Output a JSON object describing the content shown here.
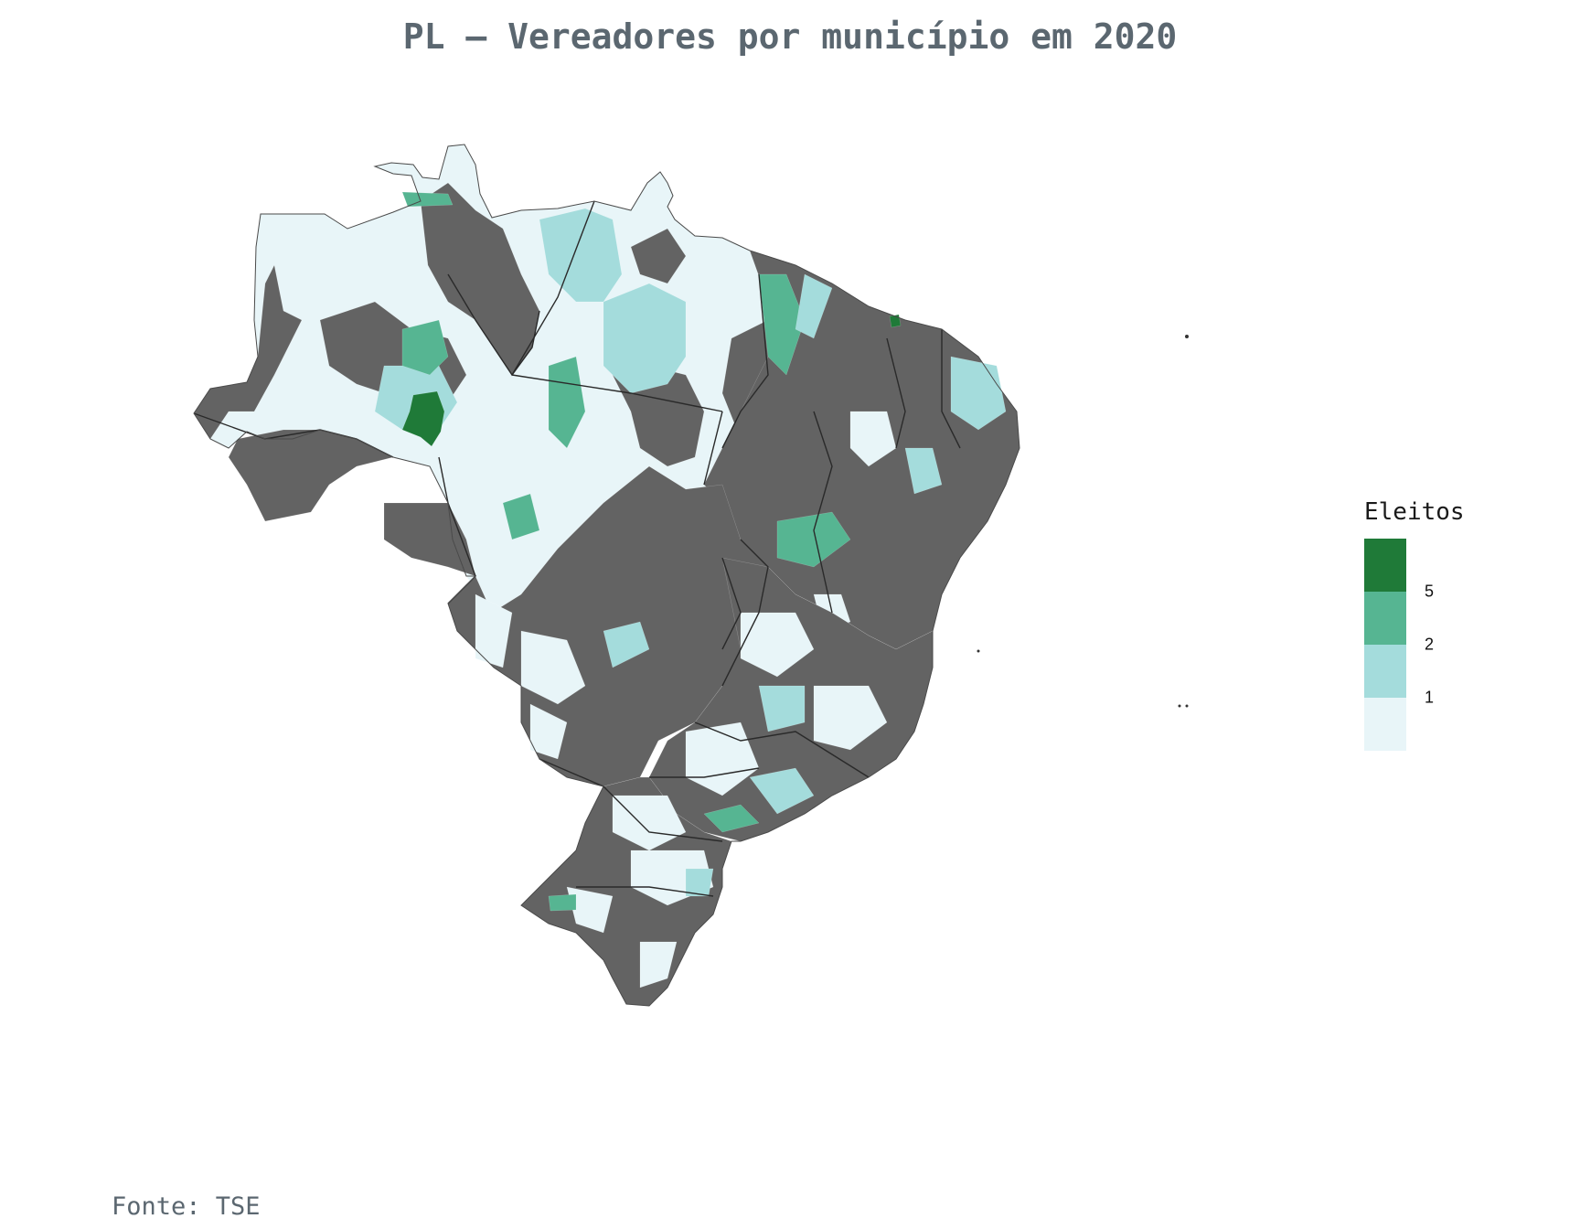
{
  "title": "PL – Vereadores por município em 2020",
  "source": "Fonte: TSE",
  "colors": {
    "no_data": "#636363",
    "bin_lt1": "#e8f5f8",
    "bin_1_2": "#a4dcdc",
    "bin_2_5": "#56b592",
    "bin_5plus": "#1f7a38",
    "state_border": "#2a2a2a",
    "title": "#5b6770"
  },
  "legend": {
    "title": "Eleitos",
    "ticks": [
      "5",
      "2",
      "1"
    ],
    "bins": [
      {
        "color_key": "bin_5plus"
      },
      {
        "color_key": "bin_2_5"
      },
      {
        "color_key": "bin_1_2"
      },
      {
        "color_key": "bin_lt1"
      }
    ]
  },
  "chart_data": {
    "type": "choropleth",
    "region": "Brasil – municípios",
    "variable": "Eleitos",
    "legend_breaks": [
      1,
      2,
      5
    ],
    "legend_position": "right"
  }
}
